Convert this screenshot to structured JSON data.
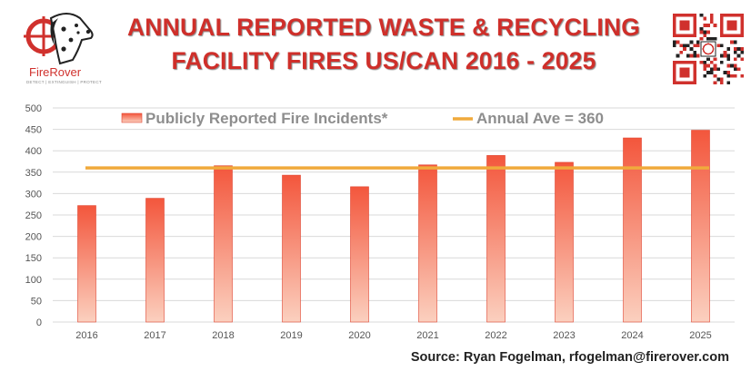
{
  "brand": {
    "name": "FireRover",
    "tagline": "DETECT | EXTINGUISH | PROTECT"
  },
  "title_line1": "ANNUAL REPORTED WASTE & RECYCLING",
  "title_line2": "FACILITY FIRES US/CAN 2016 - 2025",
  "source": "Source: Ryan Fogelman, rfogelman@firerover.com",
  "colors": {
    "title": "#cf2f2a",
    "bar_top": "#f3563c",
    "bar_bottom": "#fbd0bf",
    "average_line": "#f0aa3c",
    "gridline": "#d9d9d9"
  },
  "chart_data": {
    "type": "bar",
    "categories": [
      "2016",
      "2017",
      "2018",
      "2019",
      "2020",
      "2021",
      "2022",
      "2023",
      "2024",
      "2025"
    ],
    "series": [
      {
        "name": "Publicly Reported Fire Incidents*",
        "type": "bar",
        "values": [
          272,
          289,
          365,
          343,
          316,
          367,
          389,
          373,
          430,
          448
        ]
      },
      {
        "name": "Annual Ave = 360",
        "type": "line",
        "value": 360
      }
    ],
    "ylim": [
      0,
      500
    ],
    "yticks": [
      0,
      50,
      100,
      150,
      200,
      250,
      300,
      350,
      400,
      450,
      500
    ],
    "grid": true,
    "legend": "top-center",
    "xlabel": "",
    "ylabel": ""
  }
}
